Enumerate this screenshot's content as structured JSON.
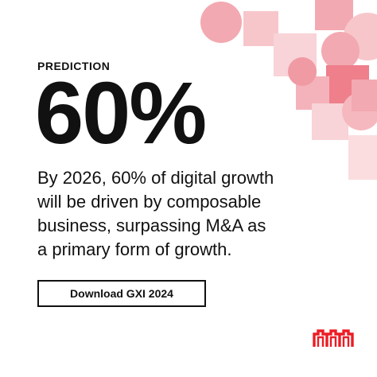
{
  "card": {
    "eyebrow": "PREDICTION",
    "stat": "60%",
    "headline_lines": [
      "By 2026, 60% of digital growth",
      "will be driven by composable",
      "business, surpassing M&A as",
      "a primary form of growth."
    ],
    "cta_label": "Download GXI 2024"
  },
  "brand": {
    "logo_icon": "equinix-logo-icon",
    "accent_color": "#ed1c24"
  },
  "decoration": {
    "pattern": "pink-circles-squares-pattern",
    "colors": [
      "#f3a9b1",
      "#f7c6cb",
      "#ed6c79",
      "#fbdde0"
    ]
  }
}
